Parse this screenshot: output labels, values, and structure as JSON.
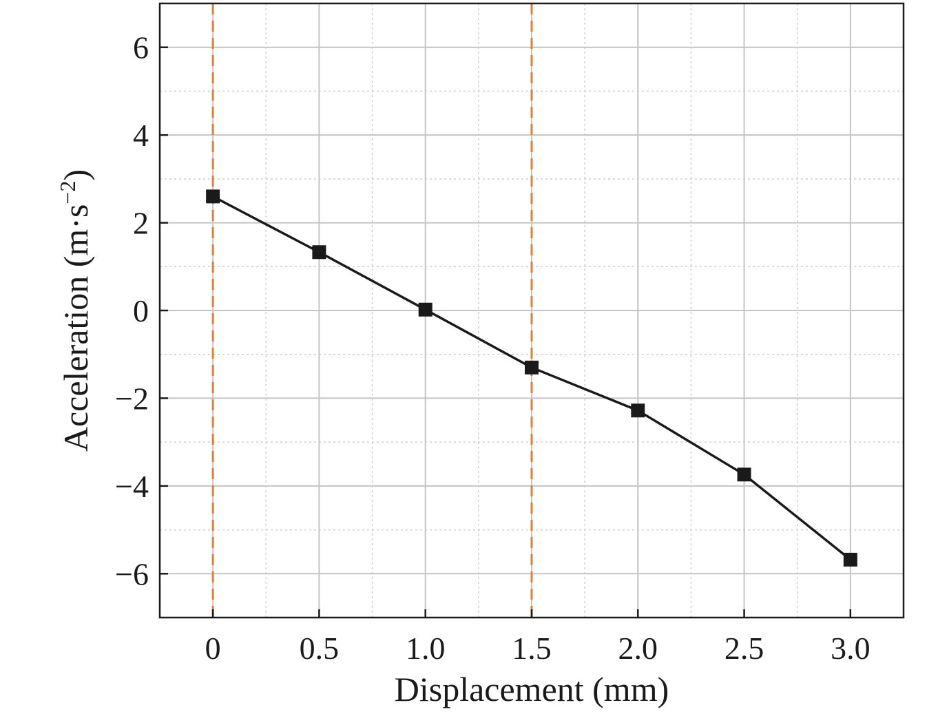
{
  "chart_data": {
    "type": "line",
    "x": [
      0,
      0.5,
      1.0,
      1.5,
      2.0,
      2.5,
      3.0
    ],
    "series": [
      {
        "values": [
          2.6,
          1.33,
          0.02,
          -1.3,
          -2.28,
          -3.74,
          -5.68
        ],
        "color": "#1a1a1a",
        "marker": "square"
      }
    ],
    "xlabel": "Displacement (mm)",
    "ylabel_text": "Acceleration (m·s",
    "ylabel_sup": "−2",
    "ylabel_close": ")",
    "xlim": [
      -0.25,
      3.25
    ],
    "ylim": [
      -7,
      7
    ],
    "xticks": [
      0,
      0.5,
      1.0,
      1.5,
      2.0,
      2.5,
      3.0
    ],
    "xtick_labels": [
      "0",
      "0.5",
      "1.0",
      "1.5",
      "2.0",
      "2.5",
      "3.0"
    ],
    "yticks": [
      6,
      4,
      2,
      0,
      -2,
      -4,
      -6
    ],
    "ytick_labels": [
      "6",
      "4",
      "2",
      "0",
      "−2",
      "−4",
      "−6"
    ],
    "grid": true,
    "minor_grid": true,
    "reference_lines": [
      {
        "x": 0,
        "style": "dashed",
        "color": "#d9823a"
      },
      {
        "x": 1.5,
        "style": "dashed",
        "color": "#d9823a"
      }
    ],
    "legend": "none"
  }
}
